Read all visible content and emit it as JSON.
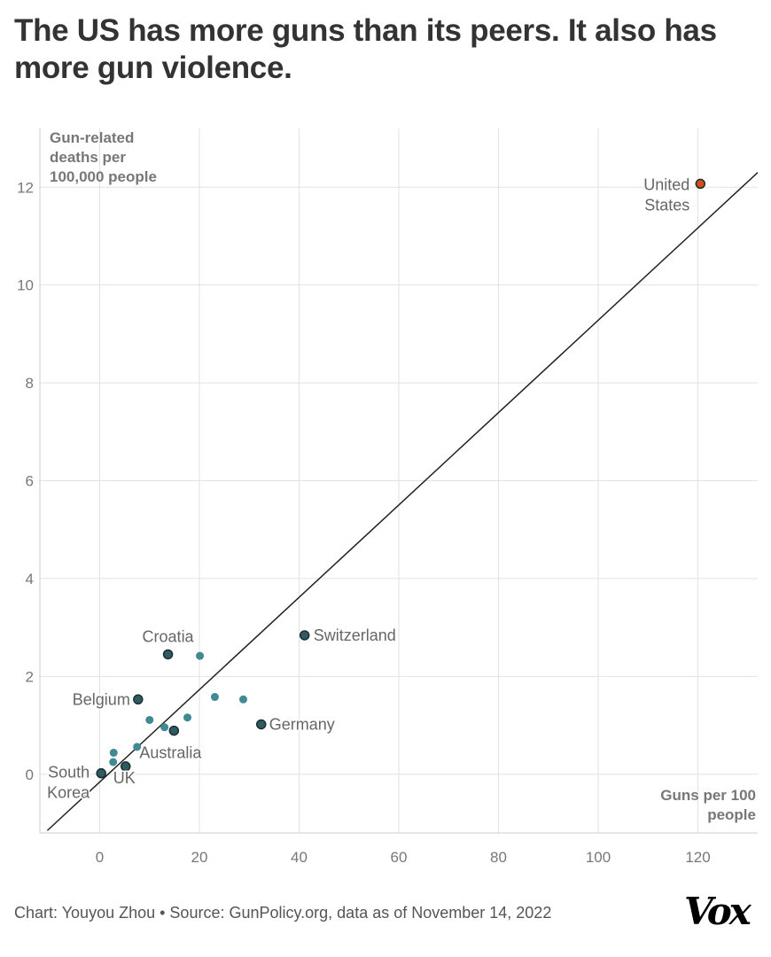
{
  "title": "The US has more guns than its peers. It also has more gun violence.",
  "footer": "Chart: Youyou Zhou • Source: GunPolicy.org, data as of November 14, 2022",
  "logo": "Vox",
  "colors": {
    "highlight": "#d24e1b",
    "labeled": "#2f5c63",
    "other": "#3f8a93",
    "line": "#222222",
    "grid": "#e2e2e2"
  },
  "chart_data": {
    "type": "scatter",
    "xlabel": "Guns per 100 people",
    "ylabel": "Gun-related deaths per 100,000 people",
    "xlim": [
      -12,
      132
    ],
    "ylim": [
      -1.2,
      13.2
    ],
    "xticks": [
      0,
      20,
      40,
      60,
      80,
      100,
      120
    ],
    "yticks": [
      0,
      2,
      4,
      6,
      8,
      10,
      12
    ],
    "grid": true,
    "trend_line": [
      [
        -10.5,
        -1.15
      ],
      [
        132,
        12.3
      ]
    ],
    "points": [
      {
        "label": "United States",
        "x": 120.5,
        "y": 12.07,
        "group": "highlight"
      },
      {
        "label": "Switzerland",
        "x": 41.1,
        "y": 2.84,
        "group": "labeled"
      },
      {
        "label": "Croatia",
        "x": 13.7,
        "y": 2.45,
        "group": "labeled"
      },
      {
        "label": "Belgium",
        "x": 7.7,
        "y": 1.53,
        "group": "labeled"
      },
      {
        "label": "Germany",
        "x": 32.4,
        "y": 1.02,
        "group": "labeled"
      },
      {
        "label": "Australia",
        "x": 14.9,
        "y": 0.89,
        "group": "labeled"
      },
      {
        "label": "UK",
        "x": 5.2,
        "y": 0.16,
        "group": "labeled"
      },
      {
        "label": "South Korea",
        "x": 0.3,
        "y": 0.02,
        "group": "labeled"
      },
      {
        "x": 20.1,
        "y": 2.42,
        "group": "other"
      },
      {
        "x": 23.1,
        "y": 1.58,
        "group": "other"
      },
      {
        "x": 28.8,
        "y": 1.53,
        "group": "other"
      },
      {
        "x": 10.0,
        "y": 1.11,
        "group": "other"
      },
      {
        "x": 17.6,
        "y": 1.16,
        "group": "other"
      },
      {
        "x": 13.0,
        "y": 0.96,
        "group": "other"
      },
      {
        "x": 7.5,
        "y": 0.56,
        "group": "other"
      },
      {
        "x": 2.8,
        "y": 0.44,
        "group": "other"
      },
      {
        "x": 2.7,
        "y": 0.25,
        "group": "other"
      }
    ]
  }
}
